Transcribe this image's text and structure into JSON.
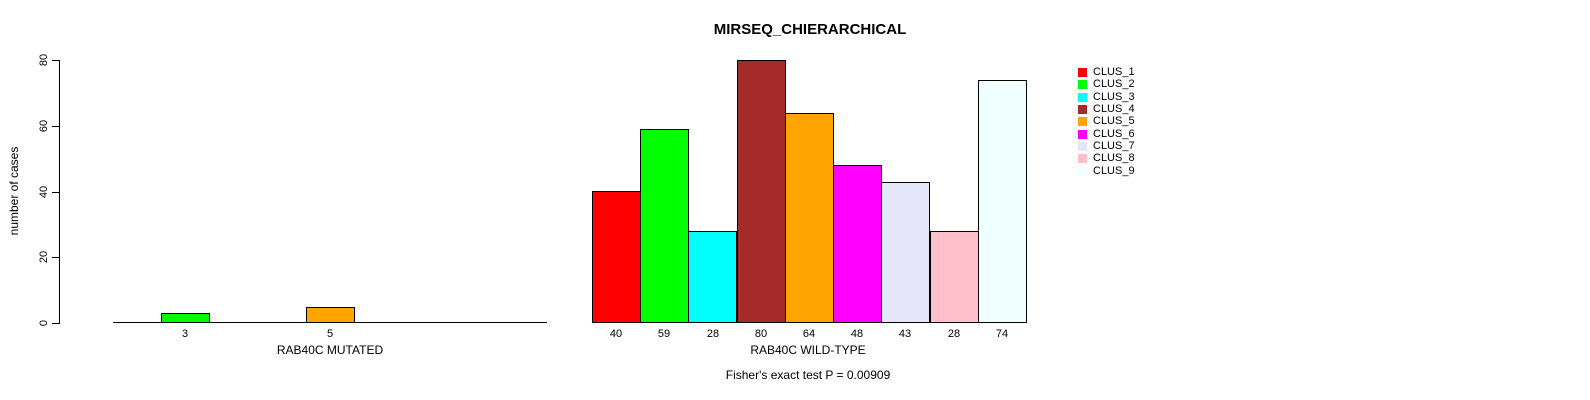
{
  "title": "MIRSEQ_CHIERARCHICAL",
  "footer": "Fisher's exact test P = 0.00909",
  "y_axis": {
    "label": "number of cases",
    "ticks": [
      0,
      20,
      40,
      60,
      80
    ],
    "limit": [
      0,
      80
    ]
  },
  "chart_data": [
    {
      "type": "bar",
      "panel": "left",
      "xlabel": "RAB40C MUTATED",
      "categories": [
        "CLUS_1",
        "CLUS_2",
        "CLUS_3",
        "CLUS_4",
        "CLUS_5",
        "CLUS_6",
        "CLUS_7",
        "CLUS_8",
        "CLUS_9"
      ],
      "values": [
        0,
        3,
        0,
        0,
        5,
        0,
        0,
        0,
        0
      ],
      "bar_labels": [
        "",
        "3",
        "",
        "",
        "5",
        "",
        "",
        "",
        ""
      ],
      "ylabel": "number of cases",
      "ylim": [
        0,
        80
      ],
      "grid": false
    },
    {
      "type": "bar",
      "panel": "right",
      "xlabel": "RAB40C WILD-TYPE",
      "categories": [
        "CLUS_1",
        "CLUS_2",
        "CLUS_3",
        "CLUS_4",
        "CLUS_5",
        "CLUS_6",
        "CLUS_7",
        "CLUS_8",
        "CLUS_9"
      ],
      "values": [
        40,
        59,
        28,
        80,
        64,
        48,
        43,
        28,
        74
      ],
      "bar_labels": [
        "40",
        "59",
        "28",
        "80",
        "64",
        "48",
        "43",
        "28",
        "74"
      ],
      "ylabel": "number of cases",
      "ylim": [
        0,
        80
      ],
      "grid": false
    }
  ],
  "legend": {
    "position": "right",
    "entries": [
      {
        "label": "CLUS_1",
        "color": "#FF0000"
      },
      {
        "label": "CLUS_2",
        "color": "#00FF00"
      },
      {
        "label": "CLUS_3",
        "color": "#00FFFF"
      },
      {
        "label": "CLUS_4",
        "color": "#A52A2A"
      },
      {
        "label": "CLUS_5",
        "color": "#FFA500"
      },
      {
        "label": "CLUS_6",
        "color": "#FF00FF"
      },
      {
        "label": "CLUS_7",
        "color": "#E6E6FA"
      },
      {
        "label": "CLUS_8",
        "color": "#FFC0CB"
      },
      {
        "label": "CLUS_9",
        "color": "#F0FFFF"
      }
    ]
  },
  "axis_color": "#000000",
  "background_color": "#FFFFFF"
}
